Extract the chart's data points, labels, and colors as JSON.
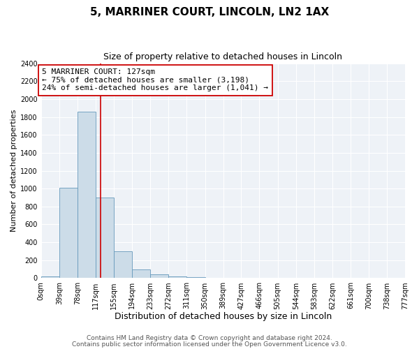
{
  "title": "5, MARRINER COURT, LINCOLN, LN2 1AX",
  "subtitle": "Size of property relative to detached houses in Lincoln",
  "xlabel": "Distribution of detached houses by size in Lincoln",
  "ylabel": "Number of detached properties",
  "bar_color": "#ccdce8",
  "bar_edge_color": "#6699bb",
  "bin_edges": [
    0,
    39,
    78,
    117,
    155,
    194,
    233,
    272,
    311,
    350,
    389,
    427,
    466,
    505,
    544,
    583,
    622,
    661,
    700,
    738,
    777
  ],
  "bin_labels": [
    "0sqm",
    "39sqm",
    "78sqm",
    "117sqm",
    "155sqm",
    "194sqm",
    "233sqm",
    "272sqm",
    "311sqm",
    "350sqm",
    "389sqm",
    "427sqm",
    "466sqm",
    "505sqm",
    "544sqm",
    "583sqm",
    "622sqm",
    "661sqm",
    "700sqm",
    "738sqm",
    "777sqm"
  ],
  "counts": [
    20,
    1010,
    1860,
    900,
    300,
    100,
    45,
    20,
    10,
    0,
    0,
    0,
    0,
    0,
    0,
    0,
    0,
    0,
    0,
    0
  ],
  "property_size": 127,
  "vline_color": "#cc0000",
  "annotation_line1": "5 MARRINER COURT: 127sqm",
  "annotation_line2": "← 75% of detached houses are smaller (3,198)",
  "annotation_line3": "24% of semi-detached houses are larger (1,041) →",
  "annotation_box_color": "#ffffff",
  "annotation_box_edge_color": "#cc0000",
  "ylim": [
    0,
    2400
  ],
  "yticks": [
    0,
    200,
    400,
    600,
    800,
    1000,
    1200,
    1400,
    1600,
    1800,
    2000,
    2200,
    2400
  ],
  "background_color": "#eef2f7",
  "grid_color": "#ffffff",
  "footer_line1": "Contains HM Land Registry data © Crown copyright and database right 2024.",
  "footer_line2": "Contains public sector information licensed under the Open Government Licence v3.0.",
  "title_fontsize": 11,
  "subtitle_fontsize": 9,
  "xlabel_fontsize": 9,
  "ylabel_fontsize": 8,
  "tick_fontsize": 7,
  "annotation_fontsize": 8,
  "footer_fontsize": 6.5
}
